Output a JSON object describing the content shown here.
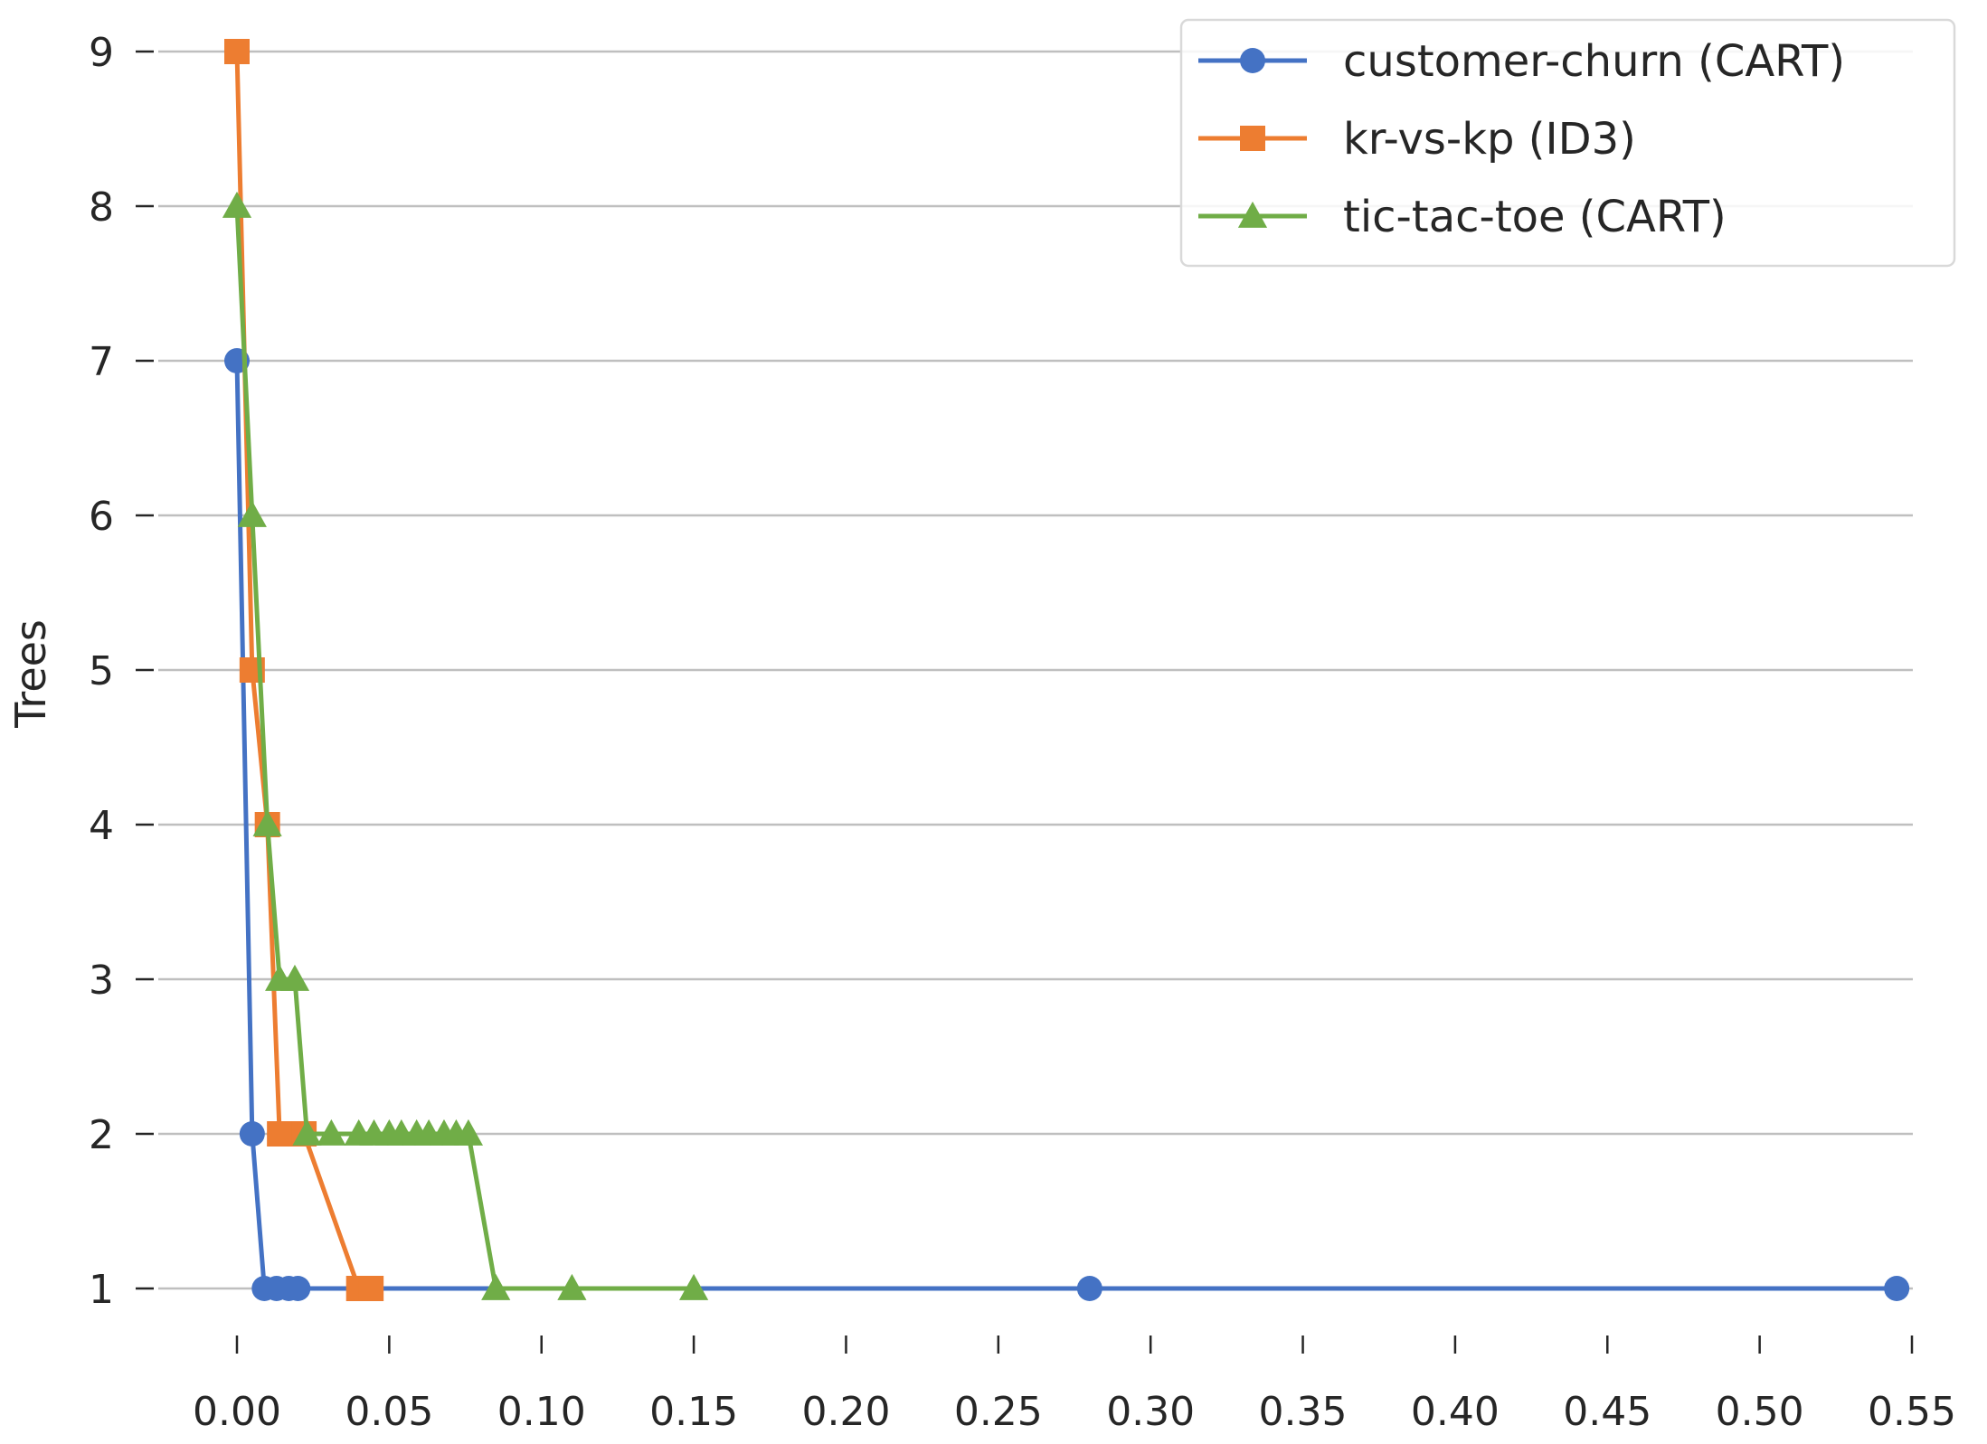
{
  "chart_data": {
    "type": "line",
    "title": "",
    "xlabel": "",
    "ylabel": "Trees",
    "xlim": [
      -0.007,
      0.555
    ],
    "ylim": [
      0.75,
      9.2
    ],
    "x_ticks": [
      "0.00",
      "0.05",
      "0.10",
      "0.15",
      "0.20",
      "0.25",
      "0.30",
      "0.35",
      "0.40",
      "0.45",
      "0.50",
      "0.55"
    ],
    "y_ticks": [
      "1",
      "2",
      "3",
      "4",
      "5",
      "6",
      "7",
      "8",
      "9"
    ],
    "grid": "horizontal",
    "legend_position": "top-right",
    "series": [
      {
        "name": "customer-churn (CART)",
        "color": "#4472c4",
        "marker": "circle",
        "x": [
          0.0,
          0.005,
          0.009,
          0.013,
          0.017,
          0.02,
          0.28,
          0.545
        ],
        "y": [
          7,
          2,
          1,
          1,
          1,
          1,
          1,
          1
        ]
      },
      {
        "name": "kr-vs-kp (ID3)",
        "color": "#ed7d31",
        "marker": "square",
        "x": [
          0.0,
          0.005,
          0.01,
          0.014,
          0.018,
          0.022,
          0.04,
          0.044
        ],
        "y": [
          9,
          5,
          4,
          2,
          2,
          2,
          1,
          1
        ]
      },
      {
        "name": "tic-tac-toe (CART)",
        "color": "#70ad47",
        "marker": "triangle",
        "x": [
          0.0,
          0.005,
          0.01,
          0.014,
          0.019,
          0.023,
          0.031,
          0.04,
          0.045,
          0.05,
          0.054,
          0.059,
          0.063,
          0.068,
          0.072,
          0.076,
          0.085,
          0.11,
          0.15
        ],
        "y": [
          8,
          6,
          4,
          3,
          3,
          2,
          2,
          2,
          2,
          2,
          2,
          2,
          2,
          2,
          2,
          2,
          1,
          1,
          1
        ]
      }
    ]
  }
}
